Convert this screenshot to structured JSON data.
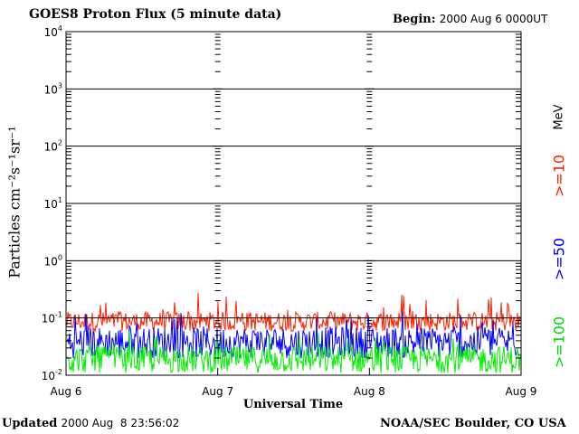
{
  "header": {
    "title": "GOES8 Proton Flux (5 minute data)",
    "begin_label": "Begin:",
    "begin_value": "2000 Aug 6 0000UT"
  },
  "footer": {
    "updated_label": "Updated",
    "updated_value": "2000 Aug  8 23:56:02",
    "credit": "NOAA/SEC Boulder, CO USA"
  },
  "chart_data": {
    "type": "line",
    "title": "GOES8 Proton Flux (5 minute data)",
    "xlabel": "Universal Time",
    "ylabel": "Particles cm⁻²s⁻¹sr⁻¹",
    "y_scale": "log",
    "ylim": [
      0.01,
      10000
    ],
    "y_ticks": [
      {
        "base": "10",
        "exp": "-2"
      },
      {
        "base": "10",
        "exp": "-1"
      },
      {
        "base": "10",
        "exp": "0"
      },
      {
        "base": "10",
        "exp": "1"
      },
      {
        "base": "10",
        "exp": "2"
      },
      {
        "base": "10",
        "exp": "3"
      },
      {
        "base": "10",
        "exp": "4"
      }
    ],
    "x_ticks": [
      "Aug 6",
      "Aug 7",
      "Aug 8",
      "Aug 9"
    ],
    "x_range": [
      "2000-08-06",
      "2000-08-09"
    ],
    "grid": "horizontal at decades",
    "legend_title": "MeV",
    "series": [
      {
        "name": ">=10",
        "color": "#ff2200",
        "typical": 0.09,
        "spread": [
          0.055,
          0.28
        ]
      },
      {
        "name": ">=50",
        "color": "#0000ff",
        "typical": 0.04,
        "spread": [
          0.018,
          0.13
        ]
      },
      {
        "name": ">=100",
        "color": "#00ee00",
        "typical": 0.02,
        "spread": [
          0.01,
          0.06
        ]
      }
    ]
  }
}
